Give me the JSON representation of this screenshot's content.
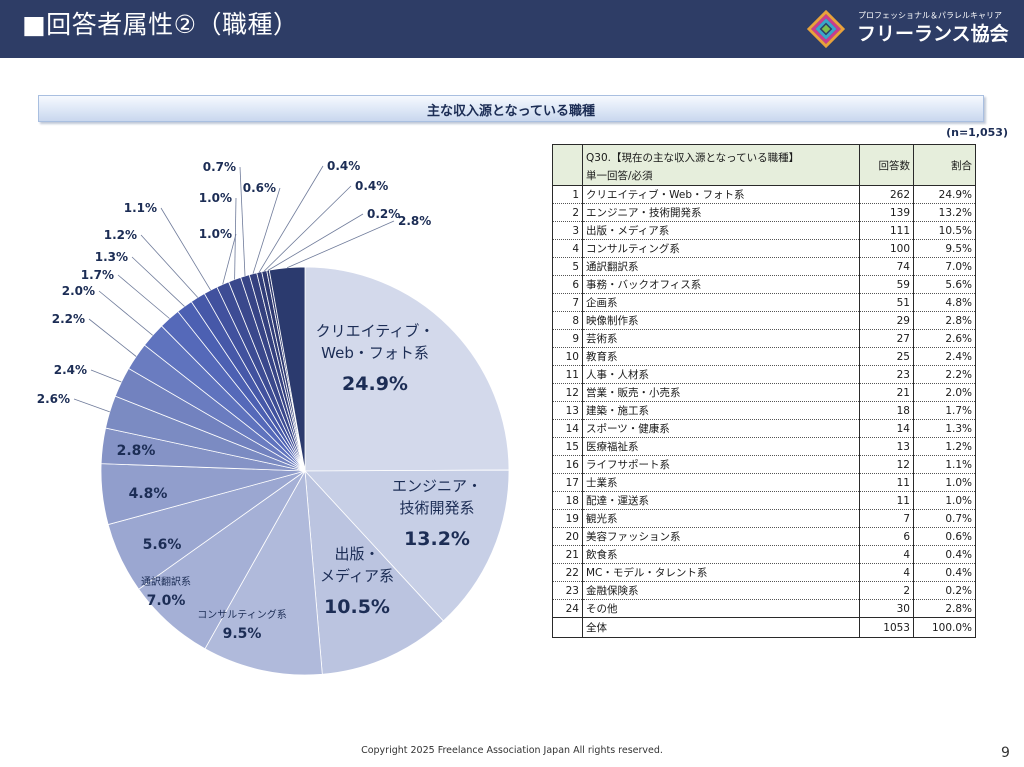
{
  "header": {
    "title": "■回答者属性②（職種）",
    "logo_sub": "プロフェッショナル＆パラレルキャリア",
    "logo_name": "フリーランス協会"
  },
  "banner": {
    "title": "主な収入源となっている職種"
  },
  "n_label": "(n=1,053)",
  "chart_data": {
    "type": "pie",
    "values": [
      24.9,
      13.2,
      10.5,
      9.5,
      7.0,
      5.6,
      4.8,
      2.8,
      2.6,
      2.4,
      2.2,
      2.0,
      1.7,
      1.3,
      1.2,
      1.1,
      1.0,
      1.0,
      0.7,
      0.6,
      0.4,
      0.4,
      0.2,
      2.8
    ],
    "inner_labels": [
      {
        "lines": [
          "クリエイティブ・",
          "Web・フォト系"
        ],
        "pct": "24.9%"
      },
      {
        "lines": [
          "エンジニア・",
          "技術開発系"
        ],
        "pct": "13.2%"
      },
      {
        "lines": [
          "出版・",
          "メディア系"
        ],
        "pct": "10.5%"
      },
      {
        "lines": [
          "コンサルティング系"
        ],
        "pct": "9.5%"
      },
      {
        "lines": [
          "通訳翻訳系"
        ],
        "pct": "7.0%"
      },
      {
        "lines": [],
        "pct": "5.6%"
      },
      {
        "lines": [],
        "pct": "4.8%"
      },
      {
        "lines": [],
        "pct": "2.8%"
      }
    ],
    "outer_labels": [
      "2.6%",
      "2.4%",
      "2.2%",
      "2.0%",
      "1.7%",
      "1.3%",
      "1.2%",
      "1.1%",
      "1.0%",
      "1.0%",
      "0.7%",
      "0.6%",
      "0.4%",
      "0.4%",
      "0.2%",
      "2.8%"
    ],
    "colors": [
      "#d3d9eb",
      "#c7cfe6",
      "#bbc4e0",
      "#b0badb",
      "#a5b0d6",
      "#9ba7d1",
      "#919ecc",
      "#8593c6",
      "#7b8bc2",
      "#7282bf",
      "#6a7cc0",
      "#5f73be",
      "#5569b9",
      "#4c60b2",
      "#4658a8",
      "#41519e",
      "#3d4c94",
      "#3a488c",
      "#374486",
      "#34407e",
      "#313d78",
      "#2f3a72",
      "#2c376c",
      "#2b3a6e"
    ]
  },
  "table": {
    "question": "Q30.【現在の主な収入源となっている職種】",
    "question_sub": "単一回答/必須",
    "col_count": "回答数",
    "col_pct": "割合",
    "rows": [
      {
        "no": "1",
        "cat": "クリエイティブ・Web・フォト系",
        "count": "262",
        "pct": "24.9%"
      },
      {
        "no": "2",
        "cat": "エンジニア・技術開発系",
        "count": "139",
        "pct": "13.2%"
      },
      {
        "no": "3",
        "cat": "出版・メディア系",
        "count": "111",
        "pct": "10.5%"
      },
      {
        "no": "4",
        "cat": "コンサルティング系",
        "count": "100",
        "pct": "9.5%"
      },
      {
        "no": "5",
        "cat": "通訳翻訳系",
        "count": "74",
        "pct": "7.0%"
      },
      {
        "no": "6",
        "cat": "事務・バックオフィス系",
        "count": "59",
        "pct": "5.6%"
      },
      {
        "no": "7",
        "cat": "企画系",
        "count": "51",
        "pct": "4.8%"
      },
      {
        "no": "8",
        "cat": "映像制作系",
        "count": "29",
        "pct": "2.8%"
      },
      {
        "no": "9",
        "cat": "芸術系",
        "count": "27",
        "pct": "2.6%"
      },
      {
        "no": "10",
        "cat": "教育系",
        "count": "25",
        "pct": "2.4%"
      },
      {
        "no": "11",
        "cat": "人事・人材系",
        "count": "23",
        "pct": "2.2%"
      },
      {
        "no": "12",
        "cat": "営業・販売・小売系",
        "count": "21",
        "pct": "2.0%"
      },
      {
        "no": "13",
        "cat": "建築・施工系",
        "count": "18",
        "pct": "1.7%"
      },
      {
        "no": "14",
        "cat": "スポーツ・健康系",
        "count": "14",
        "pct": "1.3%"
      },
      {
        "no": "15",
        "cat": "医療福祉系",
        "count": "13",
        "pct": "1.2%"
      },
      {
        "no": "16",
        "cat": "ライフサポート系",
        "count": "12",
        "pct": "1.1%"
      },
      {
        "no": "17",
        "cat": "士業系",
        "count": "11",
        "pct": "1.0%"
      },
      {
        "no": "18",
        "cat": "配達・運送系",
        "count": "11",
        "pct": "1.0%"
      },
      {
        "no": "19",
        "cat": "観光系",
        "count": "7",
        "pct": "0.7%"
      },
      {
        "no": "20",
        "cat": "美容ファッション系",
        "count": "6",
        "pct": "0.6%"
      },
      {
        "no": "21",
        "cat": "飲食系",
        "count": "4",
        "pct": "0.4%"
      },
      {
        "no": "22",
        "cat": "MC・モデル・タレント系",
        "count": "4",
        "pct": "0.4%"
      },
      {
        "no": "23",
        "cat": "金融保険系",
        "count": "2",
        "pct": "0.2%"
      },
      {
        "no": "24",
        "cat": "その他",
        "count": "30",
        "pct": "2.8%"
      }
    ],
    "total": {
      "cat": "全体",
      "count": "1053",
      "pct": "100.0%"
    }
  },
  "footer": {
    "copyright": "Copyright 2025 Freelance Association Japan  All rights reserved.",
    "page": "9"
  }
}
